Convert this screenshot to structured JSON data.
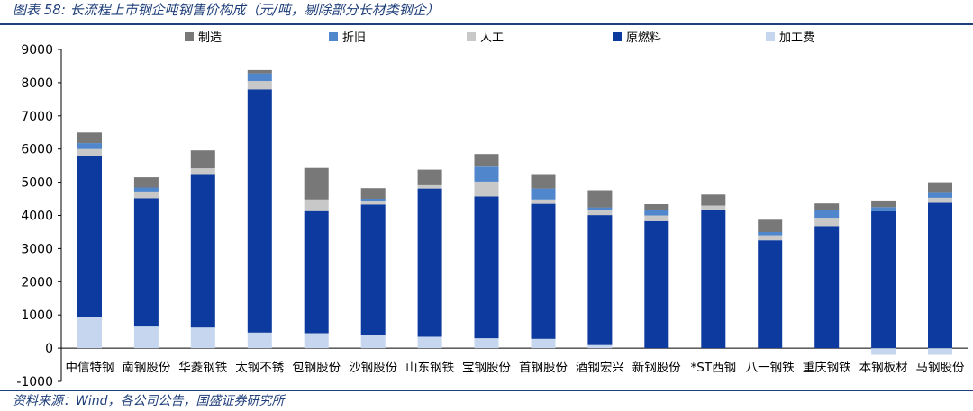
{
  "title": "图表 58: 长流程上市钢企吨钢售价构成（元/吨，剔除部分长材类钢企）",
  "source": "资料来源：Wind，各公司公告，国盛证券研究所",
  "chart_data": {
    "type": "bar",
    "stacked": true,
    "categories": [
      "中信特钢",
      "南钢股份",
      "华菱钢铁",
      "太钢不锈",
      "包钢股份",
      "沙钢股份",
      "山东钢铁",
      "宝钢股份",
      "首钢股份",
      "酒钢宏兴",
      "新钢股份",
      "*ST西钢",
      "八一钢铁",
      "重庆钢铁",
      "本钢板材",
      "马钢股份"
    ],
    "ylim": [
      -1000,
      9000
    ],
    "yticks": [
      -1000,
      0,
      1000,
      2000,
      3000,
      4000,
      5000,
      6000,
      7000,
      8000,
      9000
    ],
    "legend_placement": "top",
    "series": [
      {
        "name": "加工费",
        "color": "#c5d6ee",
        "values": [
          950,
          650,
          620,
          470,
          450,
          400,
          340,
          300,
          280,
          90,
          0,
          0,
          0,
          0,
          -200,
          -200
        ]
      },
      {
        "name": "原燃料",
        "color": "#0d3a9e",
        "values": [
          4850,
          3870,
          4600,
          7330,
          3680,
          3930,
          4470,
          4270,
          4070,
          3920,
          3830,
          4150,
          3250,
          3680,
          4130,
          4380
        ]
      },
      {
        "name": "人工",
        "color": "#c8c8c8",
        "values": [
          200,
          200,
          200,
          250,
          350,
          100,
          100,
          450,
          130,
          150,
          170,
          150,
          150,
          250,
          0,
          150
        ]
      },
      {
        "name": "折旧",
        "color": "#4f86cc",
        "values": [
          180,
          120,
          0,
          230,
          0,
          70,
          0,
          450,
          330,
          80,
          160,
          0,
          100,
          230,
          120,
          150
        ]
      },
      {
        "name": "制造",
        "color": "#787878",
        "values": [
          320,
          310,
          540,
          100,
          950,
          320,
          470,
          380,
          410,
          520,
          180,
          330,
          370,
          200,
          200,
          320
        ]
      }
    ],
    "legend_order": [
      "制造",
      "折旧",
      "人工",
      "原燃料",
      "加工费"
    ]
  }
}
